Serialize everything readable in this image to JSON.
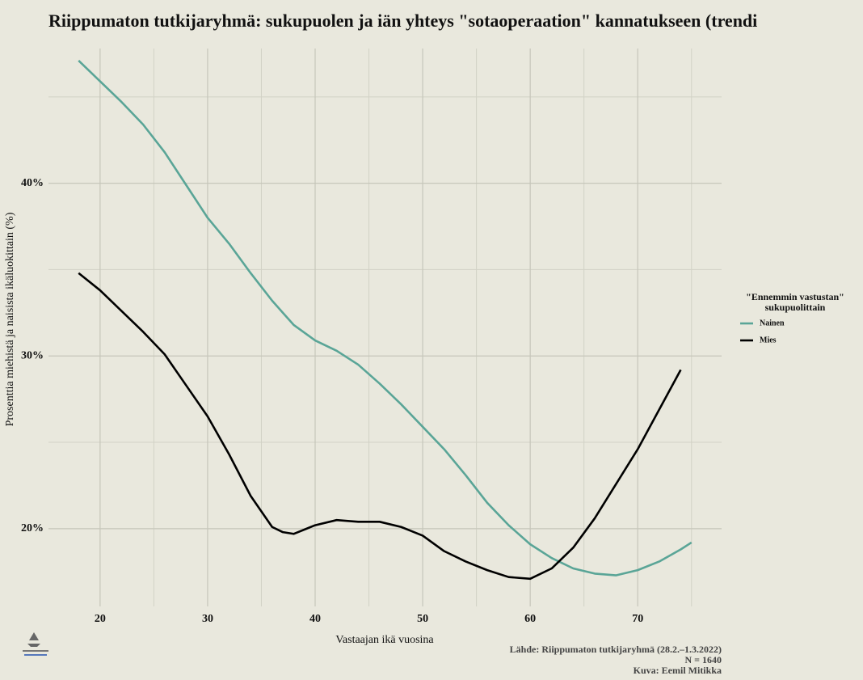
{
  "chart_data": {
    "type": "line",
    "title": "Riippumaton tutkijaryhmä: sukupuolen ja iän yhteys \"sotaoperaation\" kannatukseen (trendi",
    "x_label": "Vastaajan ikä vuosina",
    "y_label": "Prosenttia miehistä ja naisista ikäluokittain (%)",
    "legend_title": [
      "\"Ennemmin vastustan\"",
      "sukupuolittain"
    ],
    "legend_position": "right",
    "caption": [
      "Lähde: Riippumaton tutkijaryhmä (28.2.–1.3.2022)",
      "N = 1640",
      "Kuva: Eemil Mitikka"
    ],
    "x": [
      18,
      20,
      22,
      24,
      26,
      28,
      30,
      32,
      34,
      36,
      37,
      38,
      40,
      42,
      44,
      46,
      48,
      50,
      52,
      54,
      56,
      58,
      60,
      62,
      64,
      66,
      68,
      70,
      72,
      74,
      75
    ],
    "series": [
      {
        "name": "Nainen",
        "color": "#5aa597",
        "values": [
          47.1,
          45.9,
          44.7,
          43.4,
          41.8,
          39.9,
          38.0,
          36.5,
          34.8,
          33.2,
          32.5,
          31.8,
          30.9,
          30.3,
          29.5,
          28.4,
          27.2,
          25.9,
          24.6,
          23.1,
          21.5,
          20.2,
          19.1,
          18.3,
          17.7,
          17.4,
          17.3,
          17.6,
          18.1,
          18.8,
          19.2
        ]
      },
      {
        "name": "Mies",
        "color": "#000000",
        "values": [
          34.8,
          33.8,
          32.6,
          31.4,
          30.1,
          28.3,
          26.5,
          24.3,
          21.9,
          20.1,
          19.8,
          19.7,
          20.2,
          20.5,
          20.4,
          20.4,
          20.1,
          19.6,
          18.7,
          18.1,
          17.6,
          17.2,
          17.1,
          17.7,
          18.9,
          20.6,
          22.6,
          24.6,
          26.9,
          29.2,
          null
        ]
      }
    ],
    "xlim": [
      15.2,
      77.8
    ],
    "ylim": [
      15.5,
      47.8
    ],
    "xticks": [
      20,
      30,
      40,
      50,
      60,
      70
    ],
    "yticks": [
      {
        "value": 20,
        "label": "20%"
      },
      {
        "value": 30,
        "label": "30%"
      },
      {
        "value": 40,
        "label": "40%"
      }
    ],
    "x_minor_grid": [
      25,
      35,
      45,
      55,
      65,
      75
    ],
    "y_minor_grid": [
      25,
      35,
      45
    ],
    "grid": true
  }
}
